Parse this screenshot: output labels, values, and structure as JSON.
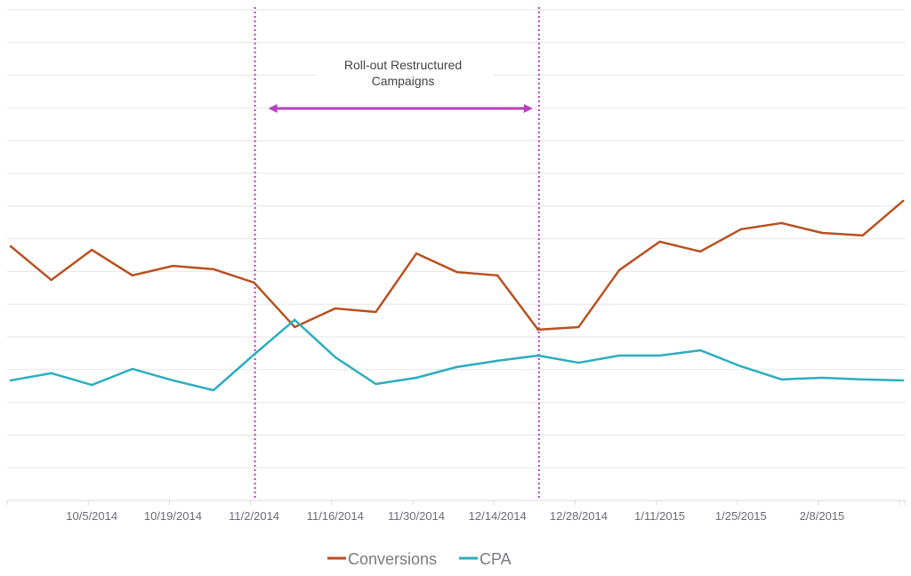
{
  "chart_data": {
    "type": "line",
    "title": "",
    "xlabel": "",
    "ylabel": "",
    "x": [
      "9/21/2014",
      "9/28/2014",
      "10/5/2014",
      "10/12/2014",
      "10/19/2014",
      "10/26/2014",
      "11/2/2014",
      "11/9/2014",
      "11/16/2014",
      "11/23/2014",
      "11/30/2014",
      "12/7/2014",
      "12/14/2014",
      "12/21/2014",
      "12/28/2014",
      "1/4/2015",
      "1/11/2015",
      "1/18/2015",
      "1/25/2015",
      "2/1/2015",
      "2/8/2015",
      "2/15/2015",
      "2/22/2015"
    ],
    "x_tick_labels": [
      "10/5/2014",
      "10/19/2014",
      "11/2/2014",
      "11/16/2014",
      "11/30/2014",
      "12/14/2014",
      "12/28/2014",
      "1/11/2015",
      "1/25/2015",
      "2/8/2015"
    ],
    "ylim": [
      0,
      15
    ],
    "y_axis_labels_shown": false,
    "grid": true,
    "legend_position": "bottom",
    "series": [
      {
        "name": "Conversions",
        "color": "#b9501f",
        "values": [
          7.77,
          6.74,
          7.66,
          6.88,
          7.17,
          7.07,
          6.66,
          5.3,
          5.87,
          5.76,
          7.55,
          6.98,
          6.88,
          5.22,
          5.3,
          7.04,
          7.91,
          7.61,
          8.29,
          8.48,
          8.18,
          8.1,
          9.16
        ]
      },
      {
        "name": "CPA",
        "color": "#2aaebf",
        "values": [
          3.67,
          3.89,
          3.53,
          4.02,
          3.67,
          3.37,
          4.46,
          5.52,
          4.38,
          3.56,
          3.75,
          4.08,
          4.27,
          4.43,
          4.21,
          4.43,
          4.43,
          4.59,
          4.1,
          3.7,
          3.75,
          3.7,
          3.67
        ]
      }
    ],
    "annotations": {
      "vertical_lines": [
        "11/2/2014",
        "12/21/2014"
      ],
      "line_color": "#b83fbf",
      "range_label_line1": "Roll-out Restructured",
      "range_label_line2": "Campaigns"
    }
  }
}
